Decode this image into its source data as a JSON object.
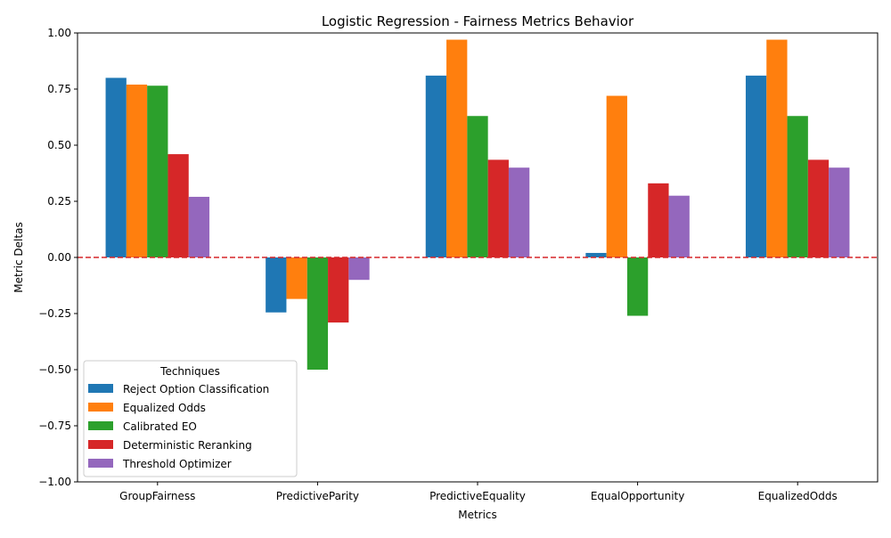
{
  "chart_data": {
    "type": "bar",
    "title": "Logistic Regression - Fairness Metrics Behavior",
    "xlabel": "Metrics",
    "ylabel": "Metric Deltas",
    "categories": [
      "GroupFairness",
      "PredictiveParity",
      "PredictiveEquality",
      "EqualOpportunity",
      "EqualizedOdds"
    ],
    "ylim": [
      -1.0,
      1.0
    ],
    "yticks": [
      -1.0,
      -0.75,
      -0.5,
      -0.25,
      0.0,
      0.25,
      0.5,
      0.75,
      1.0
    ],
    "ytick_labels": [
      "−1.00",
      "−0.75",
      "−0.50",
      "−0.25",
      "0.00",
      "0.25",
      "0.50",
      "0.75",
      "1.00"
    ],
    "reference_line": {
      "y": 0.0,
      "color": "#d62728",
      "style": "dashed"
    },
    "grid": false,
    "legend": {
      "title": "Techniques",
      "placement": "lower-left"
    },
    "series": [
      {
        "name": "Reject Option Classification",
        "color": "#1f77b4",
        "values": [
          0.8,
          -0.245,
          0.81,
          0.02,
          0.81
        ]
      },
      {
        "name": "Equalized Odds",
        "color": "#ff7f0e",
        "values": [
          0.77,
          -0.185,
          0.97,
          0.72,
          0.97
        ]
      },
      {
        "name": "Calibrated EO",
        "color": "#2ca02c",
        "values": [
          0.765,
          -0.5,
          0.63,
          -0.26,
          0.63
        ]
      },
      {
        "name": "Deterministic Reranking",
        "color": "#d62728",
        "values": [
          0.46,
          -0.29,
          0.435,
          0.33,
          0.435
        ]
      },
      {
        "name": "Threshold Optimizer",
        "color": "#9467bd",
        "values": [
          0.27,
          -0.1,
          0.4,
          0.275,
          0.4
        ]
      }
    ]
  }
}
